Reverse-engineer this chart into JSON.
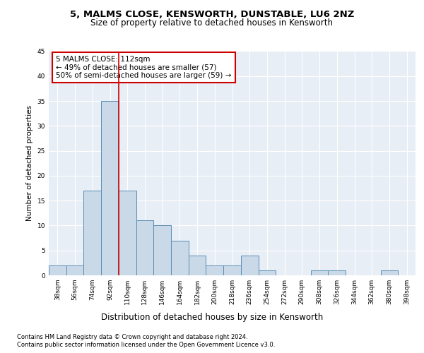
{
  "title1": "5, MALMS CLOSE, KENSWORTH, DUNSTABLE, LU6 2NZ",
  "title2": "Size of property relative to detached houses in Kensworth",
  "xlabel": "Distribution of detached houses by size in Kensworth",
  "ylabel": "Number of detached properties",
  "bar_labels": [
    "38sqm",
    "56sqm",
    "74sqm",
    "92sqm",
    "110sqm",
    "128sqm",
    "146sqm",
    "164sqm",
    "182sqm",
    "200sqm",
    "218sqm",
    "236sqm",
    "254sqm",
    "272sqm",
    "290sqm",
    "308sqm",
    "326sqm",
    "344sqm",
    "362sqm",
    "380sqm",
    "398sqm"
  ],
  "bar_values": [
    2,
    2,
    17,
    35,
    17,
    11,
    10,
    7,
    4,
    2,
    2,
    4,
    1,
    0,
    0,
    1,
    1,
    0,
    0,
    1,
    0
  ],
  "bar_color": "#c9d9e8",
  "bar_edge_color": "#5a8db5",
  "annotation_text": "5 MALMS CLOSE: 112sqm\n← 49% of detached houses are smaller (57)\n50% of semi-detached houses are larger (59) →",
  "annotation_box_color": "#ffffff",
  "annotation_box_edge": "#cc0000",
  "highlight_line_color": "#cc0000",
  "ylim": [
    0,
    45
  ],
  "yticks": [
    0,
    5,
    10,
    15,
    20,
    25,
    30,
    35,
    40,
    45
  ],
  "footer1": "Contains HM Land Registry data © Crown copyright and database right 2024.",
  "footer2": "Contains public sector information licensed under the Open Government Licence v3.0.",
  "bg_color": "#e8eef5",
  "grid_color": "#ffffff",
  "title1_fontsize": 9.5,
  "title2_fontsize": 8.5,
  "ylabel_fontsize": 7.5,
  "xlabel_fontsize": 8.5,
  "tick_fontsize": 6.5,
  "annot_fontsize": 7.5,
  "footer_fontsize": 6.0
}
